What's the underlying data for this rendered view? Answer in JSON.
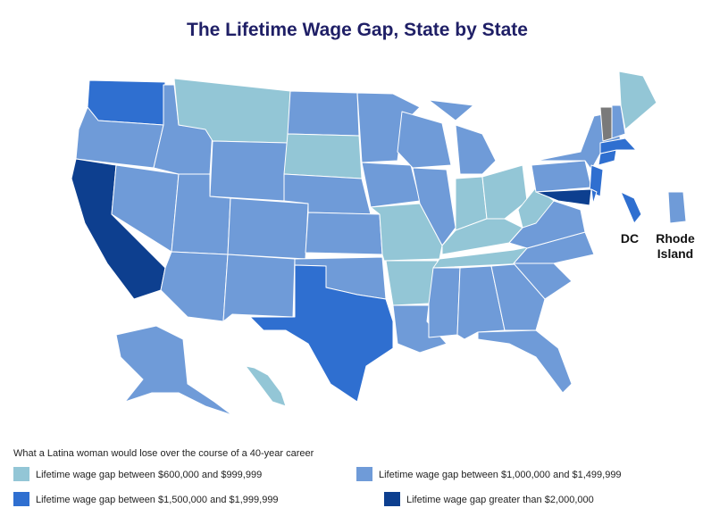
{
  "title": "The Lifetime Wage Gap, State by State",
  "labels": {
    "dc": "DC",
    "rhode_island": "Rhode Island"
  },
  "legend": {
    "title": "What a Latina woman would lose over the course of a 40-year career",
    "items": [
      {
        "label": "Lifetime wage gap between $600,000 and $999,999",
        "color": "#93c6d6"
      },
      {
        "label": "Lifetime wage gap between $1,000,000 and $1,499,999",
        "color": "#6f9bd8"
      },
      {
        "label": "Lifetime wage gap between $1,500,000 and $1,999,999",
        "color": "#2f6fd0"
      },
      {
        "label": "Lifetime wage gap greater than $2,000,000",
        "color": "#0d3f8f"
      }
    ]
  }
}
